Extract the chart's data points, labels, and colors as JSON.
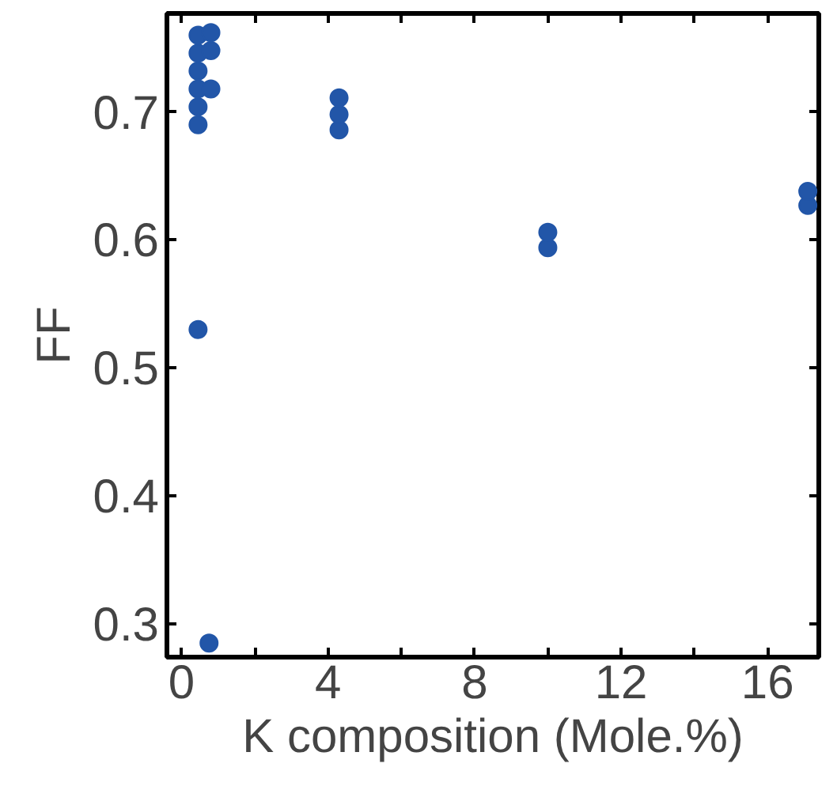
{
  "chart_data": {
    "type": "scatter",
    "xlabel": "K composition (Mole.%)",
    "ylabel": "FF",
    "xlim": [
      -0.4,
      17.4
    ],
    "ylim": [
      0.274,
      0.777
    ],
    "xticks": [
      0,
      {
        "value": 2,
        "label": null
      },
      4,
      {
        "value": 6,
        "label": null
      },
      8,
      {
        "value": 10,
        "label": null
      },
      12,
      {
        "value": 14,
        "label": null
      },
      16
    ],
    "yticks": [
      0.3,
      0.4,
      0.5,
      0.6,
      0.7
    ],
    "marker": "circle",
    "series": [
      {
        "color": "#2256a8",
        "x": [
          0.45,
          0.45,
          0.45,
          0.45,
          0.45,
          0.8,
          0.45,
          0.8,
          0.8,
          0.45,
          0.75,
          4.3,
          4.3,
          4.3,
          10,
          10,
          17.1,
          17.1
        ],
        "values": [
          0.69,
          0.704,
          0.718,
          0.732,
          0.746,
          0.718,
          0.76,
          0.748,
          0.762,
          0.53,
          0.285,
          0.686,
          0.698,
          0.711,
          0.594,
          0.606,
          0.627,
          0.638
        ]
      }
    ]
  }
}
